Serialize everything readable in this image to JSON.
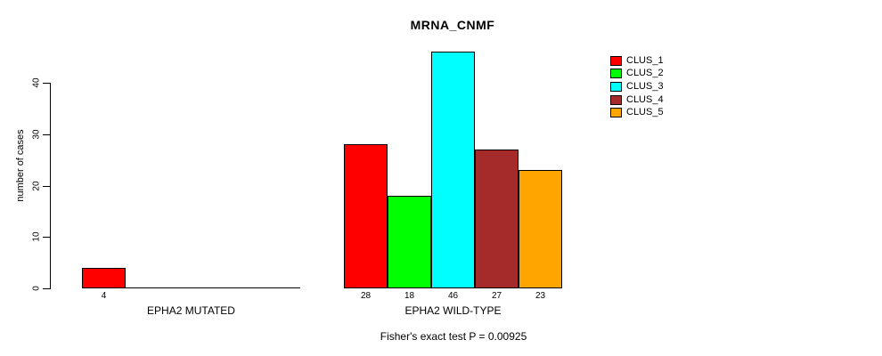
{
  "chart_data": {
    "type": "bar",
    "title": "MRNA_CNMF",
    "ylabel": "number of cases",
    "xlabel": "",
    "yticks": [
      0,
      10,
      20,
      30,
      40
    ],
    "ylim": [
      0,
      46
    ],
    "grid": false,
    "legend_position": "top-right",
    "categories": [
      "EPHA2 MUTATED",
      "EPHA2 WILD-TYPE"
    ],
    "series": [
      {
        "name": "CLUS_1",
        "color": "#FF0000",
        "values": [
          4,
          28
        ]
      },
      {
        "name": "CLUS_2",
        "color": "#00FF00",
        "values": [
          0,
          18
        ]
      },
      {
        "name": "CLUS_3",
        "color": "#00FFFF",
        "values": [
          0,
          46
        ]
      },
      {
        "name": "CLUS_4",
        "color": "#A52A2A",
        "values": [
          0,
          27
        ]
      },
      {
        "name": "CLUS_5",
        "color": "#FFA500",
        "values": [
          0,
          23
        ]
      }
    ],
    "bar_value_labels": {
      "EPHA2 MUTATED": [
        4
      ],
      "EPHA2 WILD-TYPE": [
        28,
        18,
        46,
        27,
        23
      ]
    },
    "annotation": "Fisher's exact test P = 0.00925"
  }
}
